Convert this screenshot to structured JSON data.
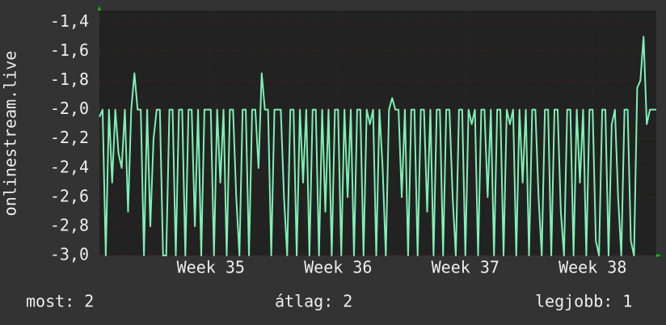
{
  "chart_data": {
    "type": "line",
    "ylabel": "onlinestream.live",
    "ylim": [
      -3.0,
      -1.32
    ],
    "yticks": [
      {
        "value": -1.4,
        "label": "-1,4"
      },
      {
        "value": -1.6,
        "label": "-1,6"
      },
      {
        "value": -1.8,
        "label": "-1,8"
      },
      {
        "value": -2.0,
        "label": "-2,0"
      },
      {
        "value": -2.2,
        "label": "-2,2"
      },
      {
        "value": -2.4,
        "label": "-2,4"
      },
      {
        "value": -2.6,
        "label": "-2,6"
      },
      {
        "value": -2.8,
        "label": "-2,8"
      },
      {
        "value": -3.0,
        "label": "-3,0"
      }
    ],
    "xlim": [
      0,
      175
    ],
    "xticks": [
      {
        "value": 35,
        "label": "Week 35"
      },
      {
        "value": 75,
        "label": "Week 36"
      },
      {
        "value": 115,
        "label": "Week 37"
      },
      {
        "value": 155,
        "label": "Week 38"
      }
    ],
    "grid": true,
    "color": "#7ff0b4",
    "values": [
      -2.05,
      -2.0,
      -3.0,
      -2.0,
      -2.5,
      -2.0,
      -2.3,
      -2.4,
      -2.0,
      -2.7,
      -2.0,
      -1.75,
      -2.0,
      -2.0,
      -3.0,
      -2.0,
      -2.8,
      -2.2,
      -2.0,
      -2.0,
      -3.0,
      -3.0,
      -2.0,
      -2.0,
      -3.0,
      -2.0,
      -2.0,
      -3.0,
      -2.0,
      -2.0,
      -2.8,
      -2.0,
      -3.0,
      -2.0,
      -2.0,
      -2.0,
      -3.0,
      -2.0,
      -2.5,
      -2.0,
      -3.0,
      -2.0,
      -2.0,
      -2.6,
      -3.0,
      -2.0,
      -2.0,
      -3.0,
      -2.0,
      -2.0,
      -2.4,
      -1.75,
      -2.0,
      -2.0,
      -3.0,
      -2.0,
      -2.0,
      -2.0,
      -2.6,
      -3.0,
      -2.0,
      -2.0,
      -3.0,
      -2.0,
      -2.5,
      -2.0,
      -3.0,
      -2.0,
      -2.0,
      -3.0,
      -2.0,
      -2.7,
      -2.0,
      -3.0,
      -2.0,
      -2.0,
      -3.0,
      -2.0,
      -2.6,
      -2.0,
      -3.0,
      -2.0,
      -2.0,
      -3.0,
      -2.0,
      -2.1,
      -2.0,
      -3.0,
      -2.0,
      -2.4,
      -3.0,
      -2.0,
      -1.92,
      -2.0,
      -2.0,
      -2.6,
      -2.0,
      -3.0,
      -2.0,
      -2.0,
      -3.0,
      -2.0,
      -2.0,
      -2.7,
      -2.0,
      -3.0,
      -2.0,
      -2.0,
      -3.0,
      -2.0,
      -2.0,
      -2.6,
      -3.0,
      -2.0,
      -2.0,
      -3.0,
      -2.0,
      -2.1,
      -2.0,
      -3.0,
      -2.0,
      -2.0,
      -2.6,
      -2.0,
      -3.0,
      -2.0,
      -2.0,
      -3.0,
      -2.0,
      -2.1,
      -2.0,
      -3.0,
      -2.0,
      -2.5,
      -2.0,
      -3.0,
      -2.0,
      -2.0,
      -2.6,
      -3.0,
      -2.0,
      -2.0,
      -3.0,
      -2.0,
      -2.0,
      -2.7,
      -3.0,
      -2.0,
      -2.0,
      -3.0,
      -2.0,
      -2.5,
      -2.0,
      -3.0,
      -2.0,
      -2.0,
      -2.9,
      -3.0,
      -2.0,
      -2.0,
      -3.0,
      -2.1,
      -2.0,
      -2.6,
      -3.0,
      -2.0,
      -2.0,
      -2.9,
      -3.0,
      -1.85,
      -1.8,
      -1.5,
      -2.1,
      -2.0,
      -2.0,
      -2.0
    ]
  },
  "footer": {
    "current": "most: 2",
    "average": "átlag: 2",
    "best": "legjobb: 1"
  }
}
